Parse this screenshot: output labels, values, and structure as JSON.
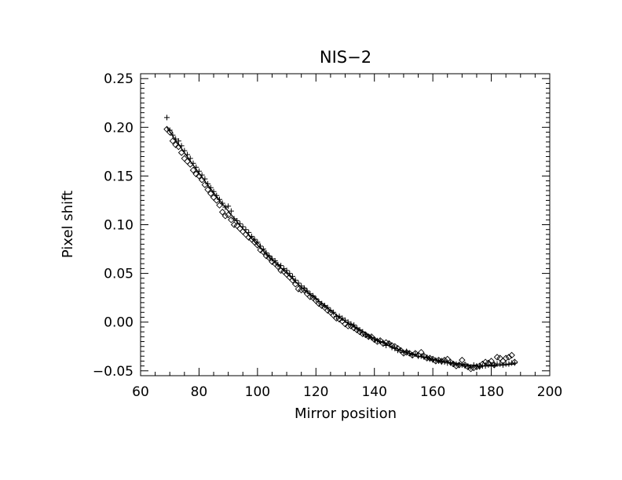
{
  "chart_data": {
    "type": "scatter",
    "title": "NIS−2",
    "xlabel": "Mirror position",
    "ylabel": "Pixel shift",
    "xlim": [
      60,
      200
    ],
    "ylim": [
      -0.055,
      0.255
    ],
    "xticks": [
      60,
      80,
      100,
      120,
      140,
      160,
      180,
      200
    ],
    "xtick_labels": [
      "60",
      "80",
      "100",
      "120",
      "140",
      "160",
      "180",
      "200"
    ],
    "yticks": [
      -0.05,
      0.0,
      0.05,
      0.1,
      0.15,
      0.2,
      0.25
    ],
    "ytick_labels": [
      "−0.05",
      "0.00",
      "0.05",
      "0.10",
      "0.15",
      "0.20",
      "0.25"
    ],
    "grid": false,
    "legend": "none",
    "series": [
      {
        "marker": "plus",
        "x": [
          69,
          70,
          71,
          72,
          73,
          74,
          75,
          76,
          77,
          78,
          79,
          80,
          81,
          82,
          83,
          84,
          85,
          86,
          87,
          88,
          89,
          90,
          91,
          92,
          93,
          94,
          95,
          96,
          97,
          98,
          99,
          100,
          101,
          102,
          103,
          104,
          105,
          106,
          107,
          108,
          109,
          110,
          111,
          112,
          113,
          114,
          115,
          116,
          117,
          118,
          119,
          120,
          121,
          122,
          123,
          124,
          125,
          126,
          127,
          128,
          129,
          130,
          131,
          132,
          133,
          134,
          135,
          136,
          137,
          138,
          139,
          140,
          141,
          142,
          143,
          144,
          145,
          146,
          147,
          148,
          149,
          150,
          151,
          152,
          153,
          154,
          155,
          156,
          157,
          158,
          159,
          160,
          161,
          162,
          163,
          164,
          165,
          166,
          167,
          168,
          169,
          170,
          171,
          172,
          173,
          174,
          175,
          176,
          177,
          178,
          179,
          180,
          181,
          182,
          183,
          184,
          185,
          186,
          187,
          188
        ],
        "y": [
          0.21,
          0.197,
          0.192,
          0.188,
          0.186,
          0.181,
          0.176,
          0.172,
          0.168,
          0.163,
          0.159,
          0.155,
          0.151,
          0.147,
          0.142,
          0.138,
          0.134,
          0.13,
          0.126,
          0.122,
          0.118,
          0.119,
          0.114,
          0.106,
          0.104,
          0.101,
          0.098,
          0.095,
          0.092,
          0.088,
          0.085,
          0.082,
          0.078,
          0.075,
          0.071,
          0.068,
          0.065,
          0.063,
          0.059,
          0.058,
          0.055,
          0.053,
          0.05,
          0.047,
          0.043,
          0.04,
          0.037,
          0.035,
          0.032,
          0.029,
          0.027,
          0.024,
          0.021,
          0.019,
          0.017,
          0.015,
          0.012,
          0.01,
          0.006,
          0.006,
          0.004,
          0.002,
          0.0,
          -0.002,
          -0.003,
          -0.006,
          -0.008,
          -0.01,
          -0.013,
          -0.015,
          -0.016,
          -0.018,
          -0.019,
          -0.02,
          -0.021,
          -0.024,
          -0.022,
          -0.026,
          -0.027,
          -0.029,
          -0.029,
          -0.031,
          -0.03,
          -0.032,
          -0.034,
          -0.033,
          -0.035,
          -0.035,
          -0.036,
          -0.036,
          -0.038,
          -0.039,
          -0.039,
          -0.04,
          -0.041,
          -0.041,
          -0.042,
          -0.042,
          -0.043,
          -0.043,
          -0.044,
          -0.044,
          -0.045,
          -0.045,
          -0.046,
          -0.044,
          -0.045,
          -0.046,
          -0.045,
          -0.045,
          -0.044,
          -0.044,
          -0.044,
          -0.043,
          -0.043,
          -0.044,
          -0.043,
          -0.043,
          -0.042,
          -0.042
        ]
      },
      {
        "marker": "diamond",
        "x": [
          69,
          70,
          71,
          72,
          73,
          74,
          75,
          76,
          77,
          78,
          79,
          80,
          81,
          82,
          83,
          84,
          85,
          86,
          87,
          88,
          89,
          90,
          91,
          92,
          93,
          94,
          95,
          96,
          97,
          98,
          99,
          100,
          101,
          102,
          103,
          104,
          105,
          106,
          107,
          108,
          109,
          110,
          111,
          112,
          113,
          114,
          115,
          116,
          117,
          118,
          119,
          120,
          121,
          122,
          123,
          124,
          125,
          126,
          127,
          128,
          129,
          130,
          131,
          132,
          133,
          134,
          135,
          136,
          137,
          138,
          139,
          140,
          141,
          142,
          143,
          144,
          145,
          146,
          147,
          148,
          149,
          150,
          151,
          152,
          153,
          154,
          155,
          156,
          157,
          158,
          159,
          160,
          161,
          162,
          163,
          164,
          165,
          166,
          167,
          168,
          169,
          170,
          171,
          172,
          173,
          174,
          175,
          176,
          177,
          178,
          179,
          180,
          181,
          182,
          183,
          184,
          185,
          186,
          187,
          188
        ],
        "y": [
          0.198,
          0.195,
          0.186,
          0.182,
          0.18,
          0.174,
          0.168,
          0.165,
          0.162,
          0.156,
          0.152,
          0.15,
          0.146,
          0.141,
          0.136,
          0.132,
          0.128,
          0.125,
          0.12,
          0.113,
          0.109,
          0.11,
          0.105,
          0.1,
          0.099,
          0.096,
          0.093,
          0.09,
          0.087,
          0.085,
          0.082,
          0.079,
          0.074,
          0.072,
          0.068,
          0.066,
          0.062,
          0.06,
          0.057,
          0.053,
          0.052,
          0.049,
          0.046,
          0.043,
          0.039,
          0.034,
          0.033,
          0.033,
          0.029,
          0.026,
          0.025,
          0.022,
          0.019,
          0.017,
          0.015,
          0.012,
          0.01,
          0.007,
          0.004,
          0.003,
          0.001,
          -0.002,
          -0.004,
          -0.004,
          -0.006,
          -0.008,
          -0.01,
          -0.012,
          -0.013,
          -0.015,
          -0.015,
          -0.018,
          -0.02,
          -0.019,
          -0.022,
          -0.021,
          -0.022,
          -0.024,
          -0.025,
          -0.027,
          -0.029,
          -0.032,
          -0.031,
          -0.032,
          -0.034,
          -0.032,
          -0.034,
          -0.031,
          -0.035,
          -0.037,
          -0.037,
          -0.038,
          -0.04,
          -0.039,
          -0.04,
          -0.039,
          -0.038,
          -0.041,
          -0.043,
          -0.045,
          -0.044,
          -0.039,
          -0.044,
          -0.046,
          -0.048,
          -0.047,
          -0.046,
          -0.045,
          -0.043,
          -0.041,
          -0.042,
          -0.04,
          -0.044,
          -0.036,
          -0.037,
          -0.04,
          -0.037,
          -0.036,
          -0.034,
          -0.041
        ]
      },
      {
        "marker": "line",
        "x": [
          69,
          75,
          80,
          85,
          90,
          95,
          100,
          105,
          110,
          115,
          120,
          125,
          130,
          135,
          140,
          145,
          150,
          155,
          160,
          165,
          170,
          175,
          180,
          185,
          188
        ],
        "y": [
          0.2,
          0.174,
          0.153,
          0.133,
          0.114,
          0.096,
          0.079,
          0.064,
          0.05,
          0.036,
          0.024,
          0.012,
          0.001,
          -0.008,
          -0.017,
          -0.024,
          -0.03,
          -0.035,
          -0.038,
          -0.041,
          -0.043,
          -0.045,
          -0.045,
          -0.044,
          -0.043
        ]
      }
    ]
  }
}
